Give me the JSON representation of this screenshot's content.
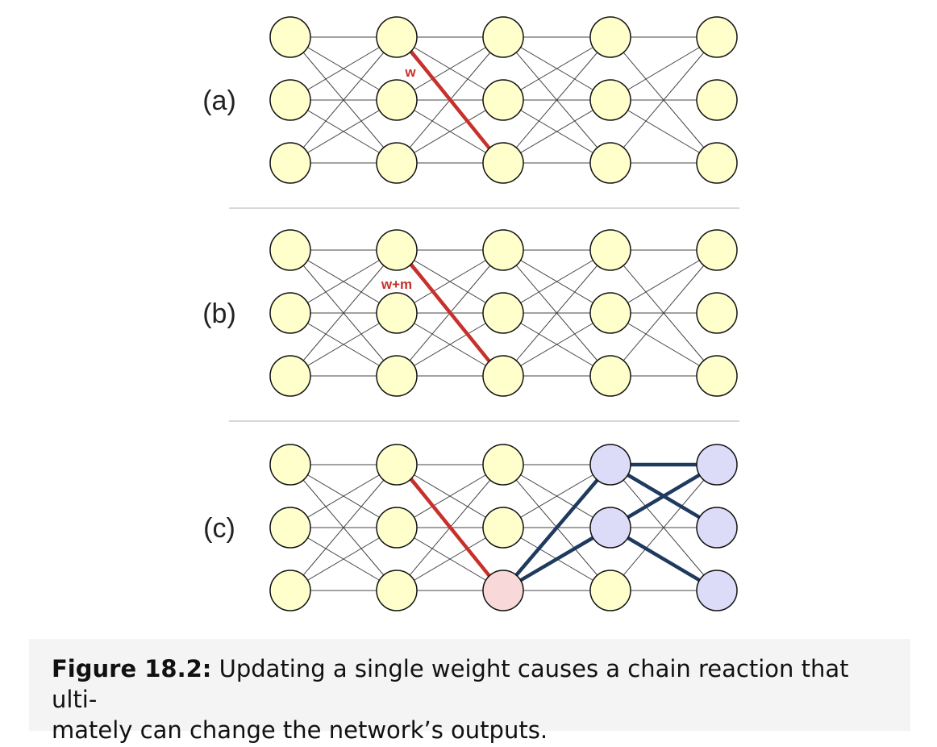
{
  "panels": [
    {
      "label": "(a)",
      "weight_label": "w",
      "mode": "plain"
    },
    {
      "label": "(b)",
      "weight_label": "w+m",
      "mode": "plain"
    },
    {
      "label": "(c)",
      "weight_label": "",
      "mode": "propagated"
    }
  ],
  "colors": {
    "node_fill": "#ffffcc",
    "node_affected_fill": "#dcdcf8",
    "node_source_fill": "#f8d8d8",
    "edge": "#444444",
    "highlight_weight": "#c8302b",
    "propagation_edge": "#1f3a5f",
    "divider": "#cccccc"
  },
  "caption": {
    "figure_label": "Figure 18.2:",
    "text_line1": "Updating a single weight causes a chain reaction that ulti-",
    "text_line2": "mately can change the network’s outputs."
  }
}
